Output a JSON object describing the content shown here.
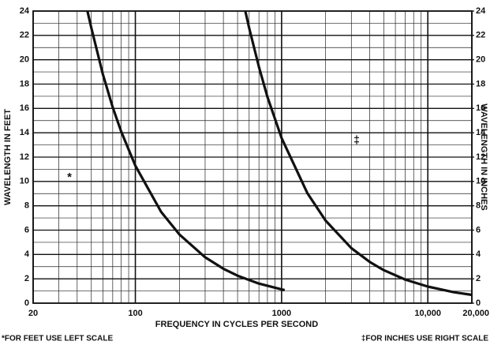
{
  "chart_data": {
    "type": "line",
    "ylabel": "WAVELENGTH IN FEET",
    "y2label": "WAVELENGTH IN INCHES",
    "xlabel": "FREQUENCY IN CYCLES PER SECOND",
    "annotations": [
      "*",
      "‡"
    ],
    "footnotes": [
      "*FOR FEET USE LEFT SCALE",
      "‡FOR INCHES USE RIGHT SCALE"
    ],
    "xscale": "log",
    "xlim": [
      20,
      20000
    ],
    "xticks": [
      20,
      100,
      1000,
      {
        "value": 10000,
        "label": "10,000"
      },
      {
        "value": 20000,
        "label": "20,000"
      }
    ],
    "xgrid": [
      30,
      40,
      50,
      60,
      70,
      80,
      90,
      200,
      300,
      400,
      500,
      600,
      700,
      800,
      900,
      2000,
      3000,
      4000,
      5000,
      6000,
      7000,
      8000,
      9000
    ],
    "ylim": [
      0,
      24
    ],
    "yticks": [
      0,
      2,
      4,
      6,
      8,
      10,
      12,
      14,
      16,
      18,
      20,
      22,
      24
    ],
    "y2lim": [
      0,
      24
    ],
    "y2ticks": [
      0,
      2,
      4,
      6,
      8,
      10,
      12,
      14,
      16,
      18,
      20,
      22,
      24
    ],
    "ygrid": [
      1,
      3,
      5,
      7,
      9,
      11,
      13,
      15,
      17,
      19,
      21,
      23
    ],
    "grid": true,
    "series": [
      {
        "color": "#111111",
        "axis": "y",
        "x": [
          47,
          50,
          60,
          70,
          80,
          100,
          150,
          200,
          300,
          400,
          500,
          700,
          1000,
          1050
        ],
        "values": [
          24.0,
          22.6,
          18.8,
          16.1,
          14.1,
          11.3,
          7.5,
          5.65,
          3.77,
          2.83,
          2.26,
          1.61,
          1.13,
          1.08
        ]
      },
      {
        "color": "#111111",
        "axis": "y2",
        "x": [
          565,
          600,
          700,
          800,
          1000,
          1500,
          2000,
          3000,
          4000,
          5000,
          7000,
          10000,
          15000,
          20000
        ],
        "values": [
          24.0,
          22.6,
          19.4,
          16.95,
          13.56,
          9.04,
          6.78,
          4.52,
          3.39,
          2.71,
          1.94,
          1.36,
          0.9,
          0.68
        ]
      }
    ]
  }
}
